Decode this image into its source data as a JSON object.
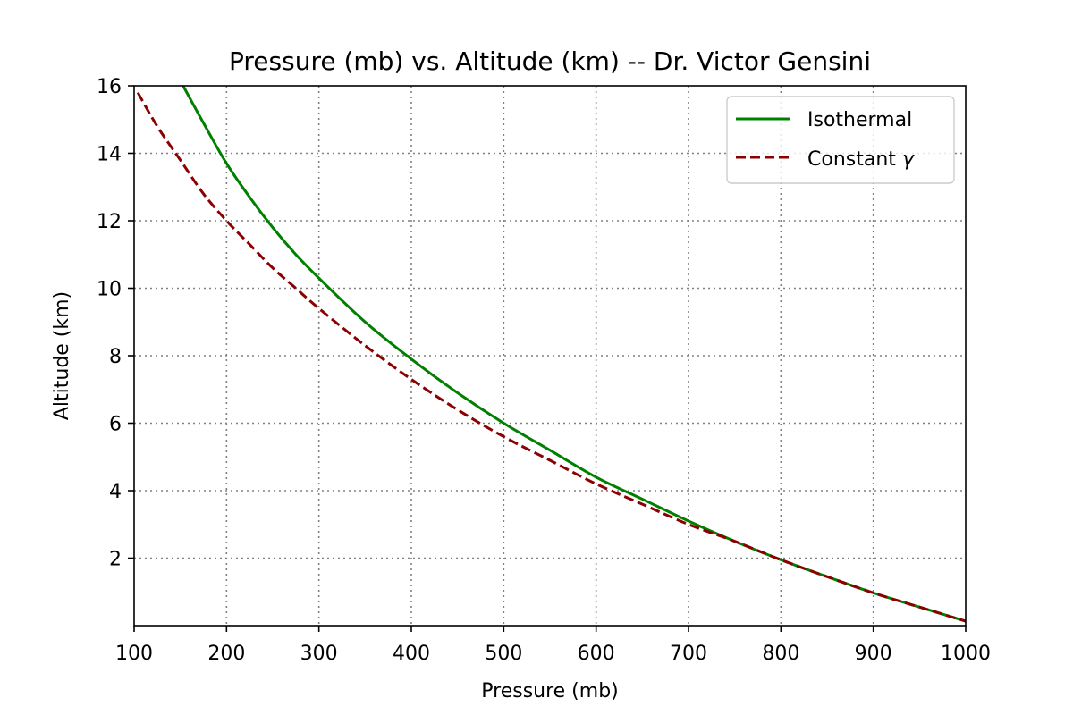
{
  "chart_data": {
    "type": "line",
    "title": "Pressure (mb) vs. Altitude (km) -- Dr. Victor Gensini",
    "xlabel": "Pressure (mb)",
    "ylabel": "Altitude (km)",
    "xlim": [
      100,
      1000
    ],
    "ylim": [
      0,
      16
    ],
    "xticks": [
      100,
      200,
      300,
      400,
      500,
      600,
      700,
      800,
      900,
      1000
    ],
    "yticks": [
      2,
      4,
      6,
      8,
      10,
      12,
      14,
      16
    ],
    "grid": true,
    "legend_position": "top-right",
    "series": [
      {
        "name": "Isothermal",
        "legend_label": "Isothermal",
        "color": "#008000",
        "style": "solid",
        "x": [
          153,
          175,
          200,
          225,
          250,
          275,
          300,
          350,
          400,
          450,
          500,
          550,
          600,
          650,
          700,
          750,
          800,
          850,
          900,
          950,
          1000
        ],
        "y": [
          16.0,
          14.9,
          13.7,
          12.7,
          11.8,
          11.0,
          10.3,
          9.0,
          7.9,
          6.9,
          6.0,
          5.2,
          4.4,
          3.75,
          3.1,
          2.5,
          1.95,
          1.45,
          0.97,
          0.55,
          0.13
        ]
      },
      {
        "name": "Constant gamma",
        "legend_label": "Constant ",
        "legend_symbol": "γ",
        "color": "#8b0000",
        "style": "dashed",
        "x": [
          104,
          125,
          150,
          175,
          200,
          225,
          250,
          275,
          300,
          350,
          400,
          450,
          500,
          550,
          600,
          650,
          700,
          750,
          800,
          850,
          900,
          950,
          1000
        ],
        "y": [
          15.8,
          14.8,
          13.8,
          12.8,
          12.0,
          11.3,
          10.6,
          10.0,
          9.4,
          8.3,
          7.3,
          6.4,
          5.6,
          4.9,
          4.2,
          3.6,
          3.0,
          2.5,
          1.95,
          1.45,
          0.97,
          0.55,
          0.13
        ]
      }
    ]
  }
}
